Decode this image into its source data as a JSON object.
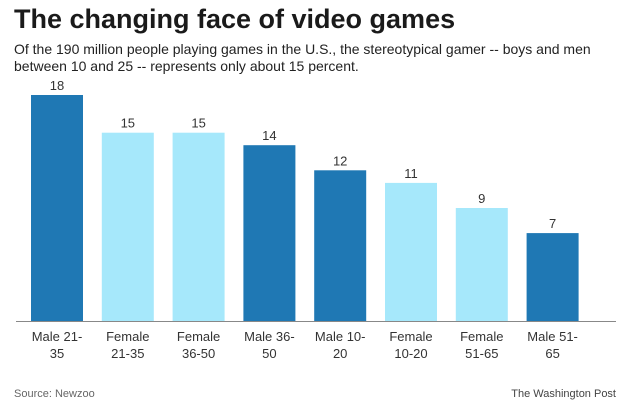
{
  "chart_data": {
    "type": "bar",
    "title": "The changing face of video games",
    "subtitle": "Of the 190 million people playing games in the U.S., the stereotypical gamer -- boys and men between 10 and 25 -- represents only about 15 percent.",
    "categories": [
      [
        "Male 21-",
        "35"
      ],
      [
        "Female",
        "21-35"
      ],
      [
        "Female",
        "36-50"
      ],
      [
        "Male 36-",
        "50"
      ],
      [
        "Male 10-",
        "20"
      ],
      [
        "Female",
        "10-20"
      ],
      [
        "Female",
        "51-65"
      ],
      [
        "Male 51-",
        "65"
      ]
    ],
    "values": [
      18,
      15,
      15,
      14,
      12,
      11,
      9,
      7
    ],
    "groups": [
      "male",
      "female",
      "female",
      "male",
      "male",
      "female",
      "female",
      "male"
    ],
    "ylim": [
      0,
      18
    ],
    "xlabel": "",
    "ylabel": "",
    "grid": false
  },
  "colors": {
    "male": "#1f78b4",
    "female": "#a6e8fb",
    "axis": "#888888"
  },
  "footer": {
    "source": "Source: Newzoo",
    "credit": "The Washington Post"
  }
}
